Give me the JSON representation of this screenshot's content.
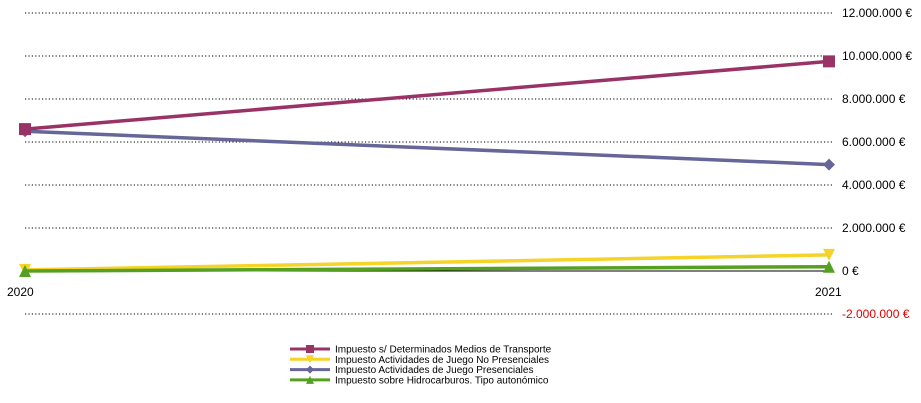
{
  "chart_data": {
    "type": "line",
    "x": [
      "2020",
      "2021"
    ],
    "ylim": [
      -2000000,
      12000000
    ],
    "yticks": [
      -2000000,
      0,
      2000000,
      4000000,
      6000000,
      8000000,
      10000000,
      12000000
    ],
    "ytick_labels": [
      "-2.000.000 €",
      "0 €",
      "2.000.000 €",
      "4.000.000 €",
      "6.000.000 €",
      "8.000.000 €",
      "10.000.000 €",
      "12.000.000 €"
    ],
    "grid": true,
    "legend_position": "bottom-center",
    "series": [
      {
        "name": "Impuesto s/ Determinados Medios de Transporte",
        "values": [
          6600000,
          9750000
        ],
        "color": "#993366",
        "marker": "square"
      },
      {
        "name": "Impuesto Actividades de Juego No Presenciales",
        "values": [
          50000,
          750000
        ],
        "color": "#f5d327",
        "marker": "triangle-down"
      },
      {
        "name": "Impuesto Actividades de Juego Presenciales",
        "values": [
          6500000,
          4950000
        ],
        "color": "#666699",
        "marker": "diamond"
      },
      {
        "name": "Impuesto sobre Hidrocarburos. Tipo autonómico",
        "values": [
          0,
          200000
        ],
        "color": "#55a020",
        "marker": "triangle-up"
      }
    ]
  }
}
